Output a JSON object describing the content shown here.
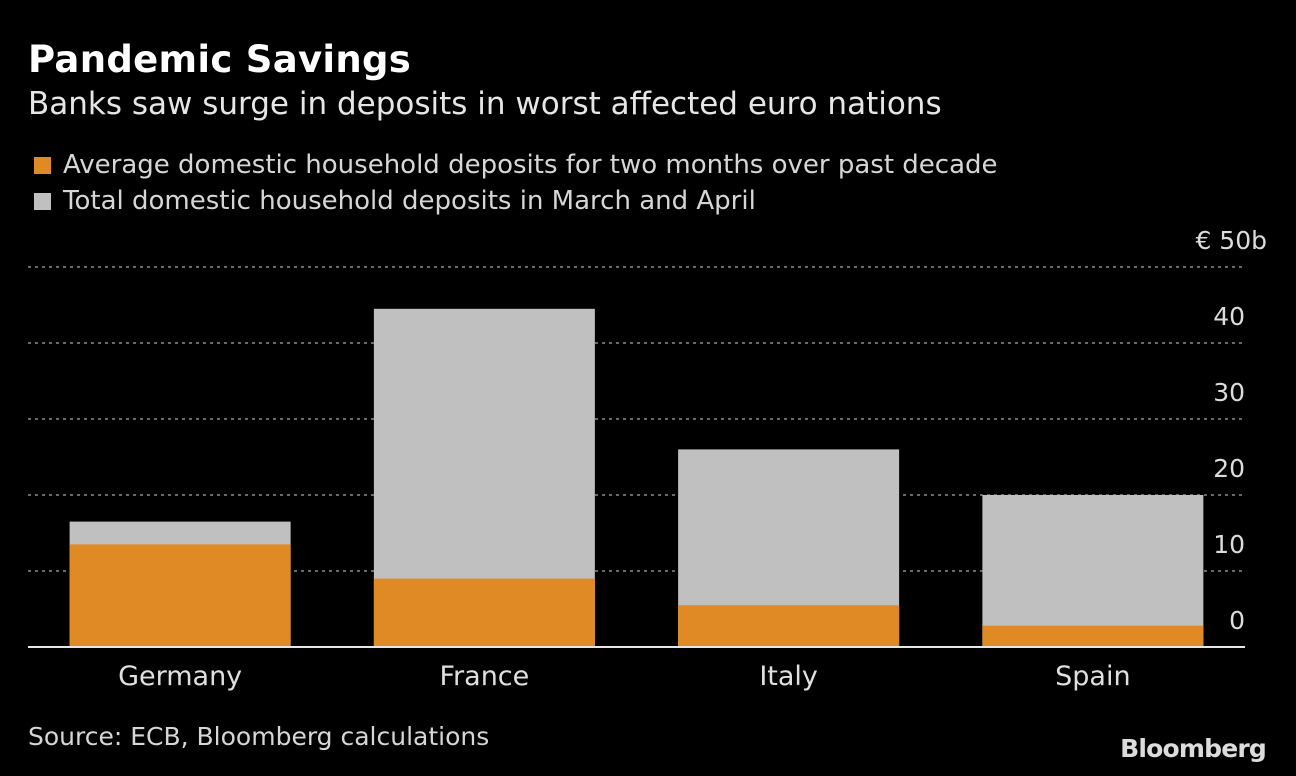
{
  "chart_data": {
    "type": "bar",
    "stacked": true,
    "title": "Pandemic Savings",
    "subtitle": "Banks saw surge in deposits in worst affected euro nations",
    "categories": [
      "Germany",
      "France",
      "Italy",
      "Spain"
    ],
    "series": [
      {
        "name": "Average domestic household deposits for two months over past decade",
        "color": "#e08a25",
        "values": [
          13.5,
          9.0,
          5.5,
          2.8
        ]
      },
      {
        "name": "Total domestic household deposits in March and April",
        "color": "#c0c0c0",
        "values": [
          16.5,
          44.5,
          26.0,
          20.0
        ]
      }
    ],
    "y_unit_label": "€ 50b",
    "ylim": [
      0,
      50
    ],
    "yticks": [
      "0",
      "10",
      "20",
      "30",
      "40"
    ],
    "grid": true,
    "legend_position": "top-left",
    "source": "Source: ECB, Bloomberg calculations",
    "brand": "Bloomberg"
  }
}
